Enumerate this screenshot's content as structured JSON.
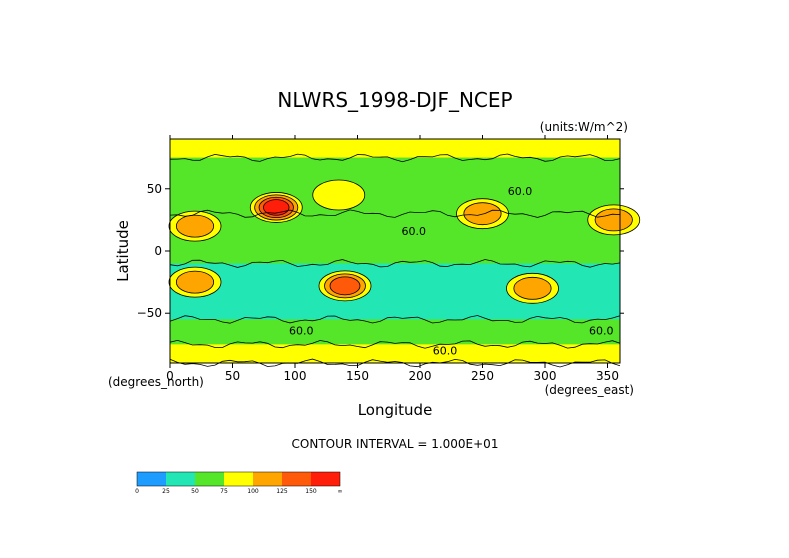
{
  "chart_data": {
    "type": "heatmap",
    "title": "NLWRS_1998-DJF_NCEP",
    "units_label": "(units:W/m^2)",
    "xlabel": "Longitude",
    "ylabel": "Latitude",
    "x_unit_label": "(degrees_east)",
    "y_unit_label": "(degrees_north)",
    "xlim": [
      0,
      360
    ],
    "ylim": [
      -90,
      90
    ],
    "x_ticks": [
      0,
      50,
      100,
      150,
      200,
      250,
      300,
      350
    ],
    "x_tick_labels": [
      "0",
      "50",
      "100",
      "150",
      "200",
      "250",
      "300",
      "350"
    ],
    "y_ticks": [
      50,
      0,
      -50
    ],
    "y_tick_labels": [
      "50",
      "0",
      "−50"
    ],
    "contour_interval_text": "CONTOUR INTERVAL = 1.000E+01",
    "contour_labels": [
      {
        "text": "60.0",
        "lon": 195,
        "lat": 13
      },
      {
        "text": "60.0",
        "lon": 280,
        "lat": 45
      },
      {
        "text": "60.0",
        "lon": 105,
        "lat": -67
      },
      {
        "text": "60.0",
        "lon": 345,
        "lat": -67
      },
      {
        "text": "60.0",
        "lon": 220,
        "lat": -83
      }
    ],
    "colorbar": {
      "levels": [
        "0",
        "25",
        "50",
        "75",
        "100",
        "125",
        "150",
        "∞"
      ],
      "colors": [
        "#1f9cff",
        "#22e6b4",
        "#55e62a",
        "#ffff00",
        "#ffa500",
        "#ff5a0a",
        "#ff1e0a"
      ]
    },
    "field_description_bands": [
      {
        "lat_range": [
          75,
          90
        ],
        "value": 80
      },
      {
        "lat_range": [
          30,
          75
        ],
        "value": 60
      },
      {
        "lat_range": [
          -10,
          30
        ],
        "value": 55
      },
      {
        "lat_range": [
          -55,
          -10
        ],
        "value": 40
      },
      {
        "lat_range": [
          -75,
          -55
        ],
        "value": 55
      },
      {
        "lat_range": [
          -90,
          -75
        ],
        "value": 90
      }
    ],
    "hotspots": [
      {
        "lon": 20,
        "lat": 20,
        "value": 110
      },
      {
        "lon": 85,
        "lat": 35,
        "value": 150
      },
      {
        "lon": 135,
        "lat": 45,
        "value": 95
      },
      {
        "lon": 140,
        "lat": -28,
        "value": 140
      },
      {
        "lon": 20,
        "lat": -25,
        "value": 110
      },
      {
        "lon": 290,
        "lat": -30,
        "value": 120
      },
      {
        "lon": 250,
        "lat": 30,
        "value": 110
      },
      {
        "lon": 355,
        "lat": 25,
        "value": 110
      }
    ]
  }
}
